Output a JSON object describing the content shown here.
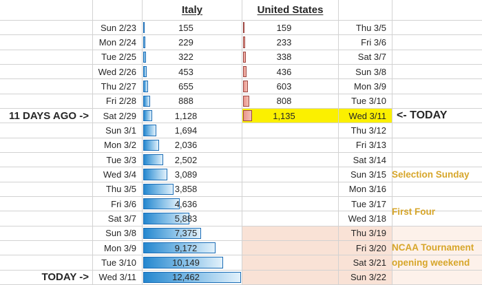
{
  "headers": {
    "italy": "Italy",
    "united_states": "United States"
  },
  "right_annotations": {
    "selection_sunday": "Selection Sunday",
    "first_four": "First Four",
    "ncaa_line1": "NCAA Tournament",
    "ncaa_line2": "opening weekend"
  },
  "rows": [
    {
      "left_label": "",
      "italy_date": "Sun 2/23",
      "italy_value": "155",
      "italy_num": 155,
      "us_value": "159",
      "us_num": 159,
      "us_date": "Thu 3/5",
      "right_label": "",
      "highlight": false,
      "pink": false
    },
    {
      "left_label": "",
      "italy_date": "Mon 2/24",
      "italy_value": "229",
      "italy_num": 229,
      "us_value": "233",
      "us_num": 233,
      "us_date": "Fri 3/6",
      "right_label": "",
      "highlight": false,
      "pink": false
    },
    {
      "left_label": "",
      "italy_date": "Tue 2/25",
      "italy_value": "322",
      "italy_num": 322,
      "us_value": "338",
      "us_num": 338,
      "us_date": "Sat 3/7",
      "right_label": "",
      "highlight": false,
      "pink": false
    },
    {
      "left_label": "",
      "italy_date": "Wed 2/26",
      "italy_value": "453",
      "italy_num": 453,
      "us_value": "436",
      "us_num": 436,
      "us_date": "Sun 3/8",
      "right_label": "",
      "highlight": false,
      "pink": false
    },
    {
      "left_label": "",
      "italy_date": "Thu 2/27",
      "italy_value": "655",
      "italy_num": 655,
      "us_value": "603",
      "us_num": 603,
      "us_date": "Mon 3/9",
      "right_label": "",
      "highlight": false,
      "pink": false
    },
    {
      "left_label": "",
      "italy_date": "Fri 2/28",
      "italy_value": "888",
      "italy_num": 888,
      "us_value": "808",
      "us_num": 808,
      "us_date": "Tue 3/10",
      "right_label": "",
      "highlight": false,
      "pink": false
    },
    {
      "left_label": "11 DAYS AGO ->",
      "italy_date": "Sat 2/29",
      "italy_value": "1,128",
      "italy_num": 1128,
      "us_value": "1,135",
      "us_num": 1135,
      "us_date": "Wed 3/11",
      "right_label": "<- TODAY",
      "highlight": true,
      "pink": false
    },
    {
      "left_label": "",
      "italy_date": "Sun 3/1",
      "italy_value": "1,694",
      "italy_num": 1694,
      "us_value": "",
      "us_num": null,
      "us_date": "Thu 3/12",
      "right_label": "",
      "highlight": false,
      "pink": false
    },
    {
      "left_label": "",
      "italy_date": "Mon 3/2",
      "italy_value": "2,036",
      "italy_num": 2036,
      "us_value": "",
      "us_num": null,
      "us_date": "Fri 3/13",
      "right_label": "",
      "highlight": false,
      "pink": false
    },
    {
      "left_label": "",
      "italy_date": "Tue 3/3",
      "italy_value": "2,502",
      "italy_num": 2502,
      "us_value": "",
      "us_num": null,
      "us_date": "Sat 3/14",
      "right_label": "",
      "highlight": false,
      "pink": false
    },
    {
      "left_label": "",
      "italy_date": "Wed 3/4",
      "italy_value": "3,089",
      "italy_num": 3089,
      "us_value": "",
      "us_num": null,
      "us_date": "Sun 3/15",
      "right_label": "",
      "highlight": false,
      "pink": false
    },
    {
      "left_label": "",
      "italy_date": "Thu 3/5",
      "italy_value": "3,858",
      "italy_num": 3858,
      "us_value": "",
      "us_num": null,
      "us_date": "Mon 3/16",
      "right_label": "",
      "highlight": false,
      "pink": false
    },
    {
      "left_label": "",
      "italy_date": "Fri 3/6",
      "italy_value": "4,636",
      "italy_num": 4636,
      "us_value": "",
      "us_num": null,
      "us_date": "Tue 3/17",
      "right_label": "",
      "highlight": false,
      "pink": false
    },
    {
      "left_label": "",
      "italy_date": "Sat 3/7",
      "italy_value": "5,883",
      "italy_num": 5883,
      "us_value": "",
      "us_num": null,
      "us_date": "Wed 3/18",
      "right_label": "",
      "highlight": false,
      "pink": false
    },
    {
      "left_label": "",
      "italy_date": "Sun 3/8",
      "italy_value": "7,375",
      "italy_num": 7375,
      "us_value": "",
      "us_num": null,
      "us_date": "Thu 3/19",
      "right_label": "",
      "highlight": false,
      "pink": true
    },
    {
      "left_label": "",
      "italy_date": "Mon 3/9",
      "italy_value": "9,172",
      "italy_num": 9172,
      "us_value": "",
      "us_num": null,
      "us_date": "Fri 3/20",
      "right_label": "",
      "highlight": false,
      "pink": true
    },
    {
      "left_label": "",
      "italy_date": "Tue 3/10",
      "italy_value": "10,149",
      "italy_num": 10149,
      "us_value": "",
      "us_num": null,
      "us_date": "Sat 3/21",
      "right_label": "",
      "highlight": false,
      "pink": true
    },
    {
      "left_label": "TODAY ->",
      "italy_date": "Wed 3/11",
      "italy_value": "12,462",
      "italy_num": 12462,
      "us_value": "",
      "us_num": null,
      "us_date": "Sun 3/22",
      "right_label": "",
      "highlight": false,
      "pink": true
    }
  ],
  "colors": {
    "italy_bar_fill": "#2487cf",
    "italy_bar_border": "#1a6cb5",
    "us_bar_fill": "#e9968d",
    "us_bar_border": "#9c4540",
    "highlight_yellow": "#fbf000",
    "pink_band": "#f9e2d6",
    "gold_text": "#d7a62a",
    "gridline": "#d2d2d2"
  },
  "chart_data": {
    "type": "bar",
    "orientation": "horizontal",
    "x_max": 12462,
    "categories_italy": [
      "Sun 2/23",
      "Mon 2/24",
      "Tue 2/25",
      "Wed 2/26",
      "Thu 2/27",
      "Fri 2/28",
      "Sat 2/29",
      "Sun 3/1",
      "Mon 3/2",
      "Tue 3/3",
      "Wed 3/4",
      "Thu 3/5",
      "Fri 3/6",
      "Sat 3/7",
      "Sun 3/8",
      "Mon 3/9",
      "Tue 3/10",
      "Wed 3/11"
    ],
    "categories_us": [
      "Thu 3/5",
      "Fri 3/6",
      "Sat 3/7",
      "Sun 3/8",
      "Mon 3/9",
      "Tue 3/10",
      "Wed 3/11",
      "Thu 3/12",
      "Fri 3/13",
      "Sat 3/14",
      "Sun 3/15",
      "Mon 3/16",
      "Tue 3/17",
      "Wed 3/18",
      "Thu 3/19",
      "Fri 3/20",
      "Sat 3/21",
      "Sun 3/22"
    ],
    "series": [
      {
        "name": "Italy",
        "values": [
          155,
          229,
          322,
          453,
          655,
          888,
          1128,
          1694,
          2036,
          2502,
          3089,
          3858,
          4636,
          5883,
          7375,
          9172,
          10149,
          12462
        ]
      },
      {
        "name": "United States",
        "values": [
          159,
          233,
          338,
          436,
          603,
          808,
          1135,
          null,
          null,
          null,
          null,
          null,
          null,
          null,
          null,
          null,
          null,
          null
        ]
      }
    ],
    "annotations": [
      "11 DAYS AGO -> Sat 2/29",
      "Wed 3/11 <- TODAY",
      "Sun 3/15 Selection Sunday",
      "Tue 3/17 - Wed 3/18 First Four",
      "Thu 3/19 - Sun 3/22 NCAA Tournament opening weekend"
    ],
    "legend_position": "column headers",
    "grid": true
  }
}
